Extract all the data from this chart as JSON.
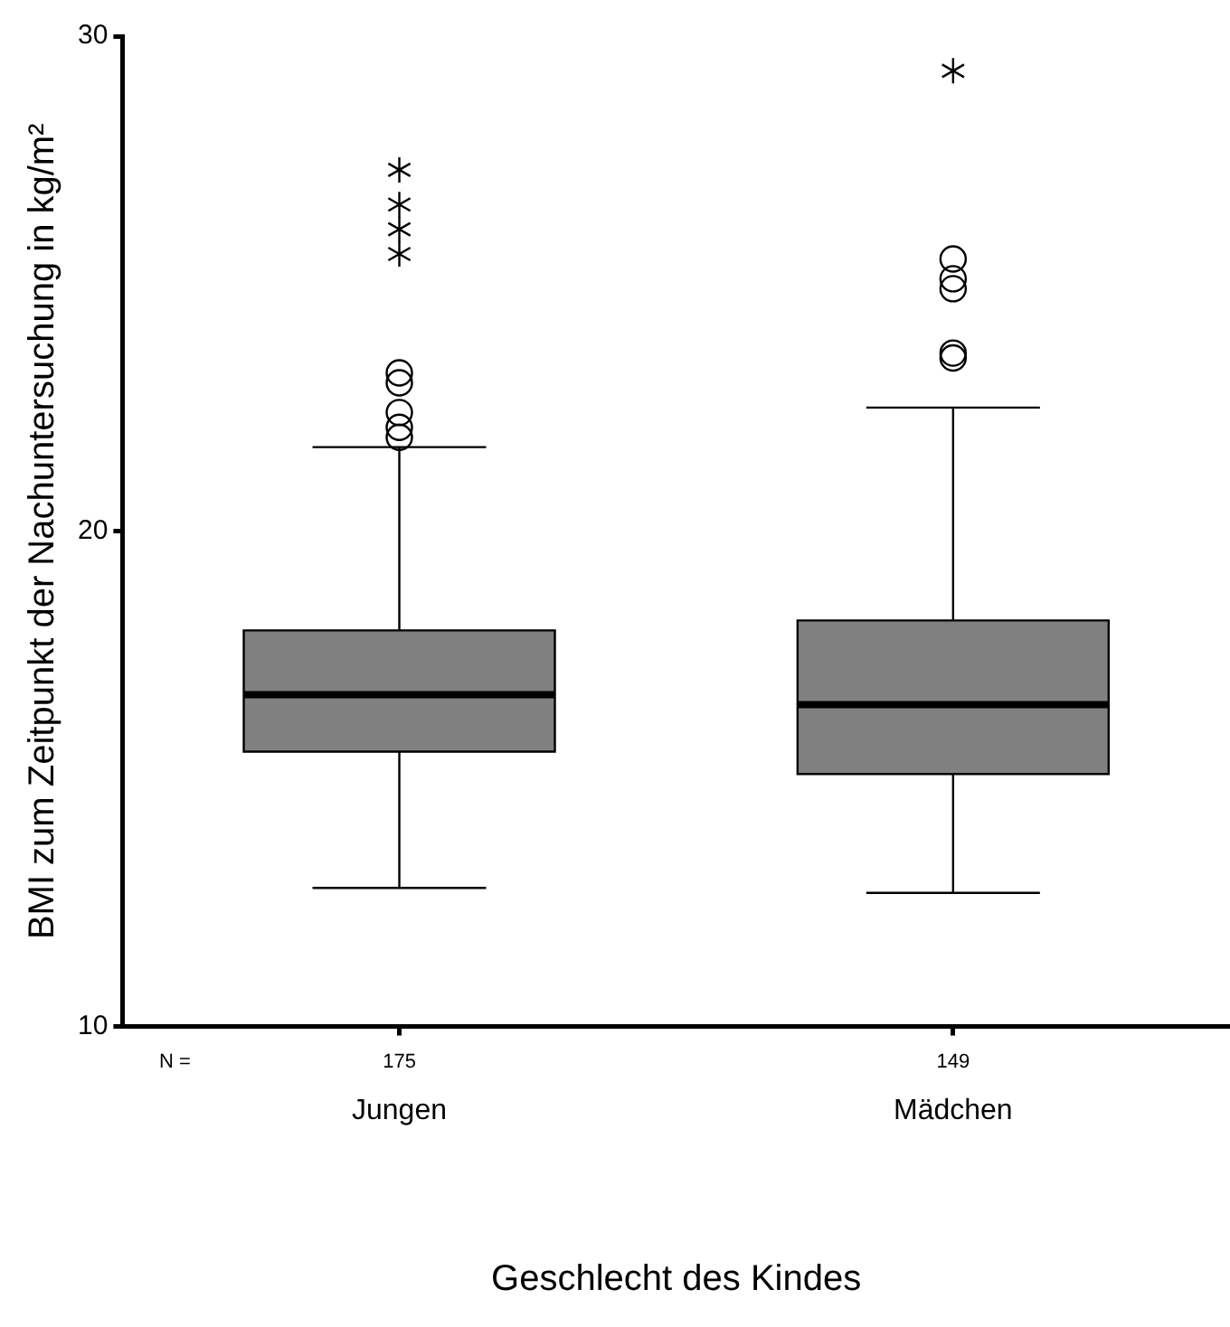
{
  "chart_data": {
    "type": "box",
    "xlabel": "Geschlecht des Kindes",
    "ylabel": "BMI zum Zeitpunkt der Nachuntersuchung in kg/m²",
    "categories": [
      "Jungen",
      "Mädchen"
    ],
    "boxes": [
      {
        "low": 12.8,
        "q1": 15.55,
        "median": 16.7,
        "q3": 18.0,
        "high": 21.7,
        "outliers": [
          21.9,
          22.1,
          22.4,
          23.0,
          23.2,
          25.6,
          26.1,
          26.6,
          27.3
        ]
      },
      {
        "low": 12.7,
        "q1": 15.1,
        "median": 16.5,
        "q3": 18.2,
        "high": 22.5,
        "outliers": [
          23.5,
          23.6,
          24.9,
          25.1,
          25.5,
          29.3
        ]
      }
    ],
    "color": "#808080",
    "ylim": [
      10,
      30
    ],
    "yticks": [
      10,
      20,
      30
    ],
    "grid": false,
    "legend": false,
    "annotations": [
      "N =",
      "175",
      "149"
    ]
  }
}
